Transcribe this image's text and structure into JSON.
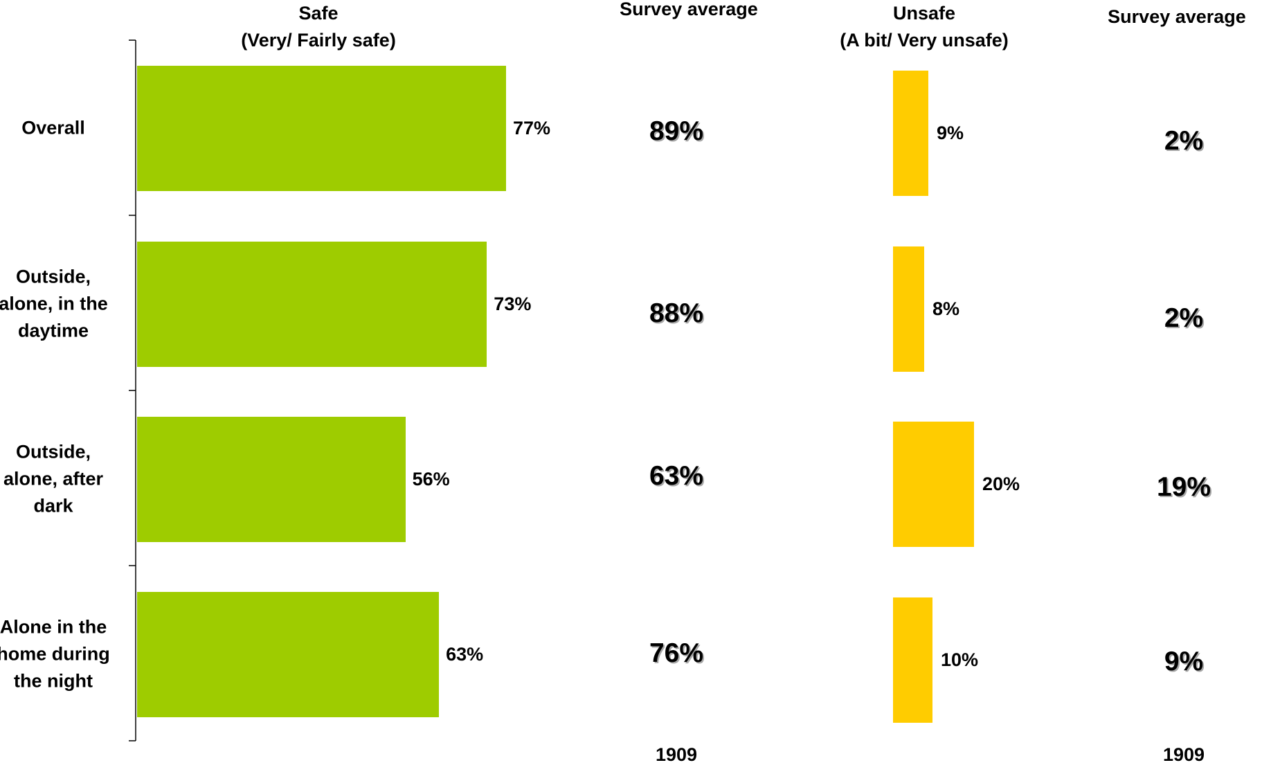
{
  "headers": {
    "safe": "Safe\n(Very/ Fairly safe)",
    "survey_avg_left": "Survey average",
    "unsafe": "Unsafe\n(A bit/ Very unsafe)",
    "survey_avg_right": "Survey average"
  },
  "colors": {
    "safe": "#9ecc00",
    "unsafe": "#ffcc00"
  },
  "chart_data": {
    "type": "bar",
    "orientation": "horizontal",
    "categories": [
      "Overall",
      "Outside,\nalone, in the\ndaytime",
      "Outside,\nalone, after\ndark",
      "Alone in the\nhome during\nthe night"
    ],
    "series": [
      {
        "name": "Safe\n(Very/ Fairly safe)",
        "values": [
          77,
          73,
          56,
          63
        ],
        "labels": [
          "77%",
          "73%",
          "56%",
          "63%"
        ]
      },
      {
        "name": "Unsafe\n(A bit/ Very unsafe)",
        "values": [
          9,
          8,
          20,
          10
        ],
        "labels": [
          "9%",
          "8%",
          "20%",
          "10%"
        ]
      }
    ],
    "survey_average_safe": [
      "89%",
      "88%",
      "63%",
      "76%"
    ],
    "survey_average_unsafe": [
      "2%",
      "2%",
      "19%",
      "9%"
    ],
    "base": [
      "1909",
      "1909"
    ],
    "xlim": [
      0,
      100
    ]
  }
}
